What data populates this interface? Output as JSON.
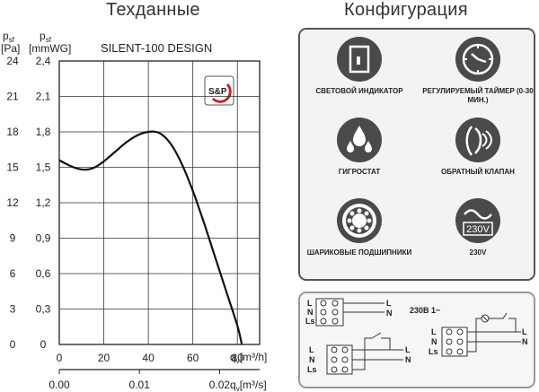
{
  "headings": {
    "tech": "Техданные",
    "config": "Конфигурация"
  },
  "chart_data": {
    "type": "line",
    "title": "SILENT-100 DESIGN",
    "y_left_label": [
      "p",
      "sf",
      "[Pa]"
    ],
    "y_right_label": [
      "p",
      "sf",
      "[mmWG]"
    ],
    "x_top_label": [
      "q",
      "v",
      "[m³/h]"
    ],
    "x_bottom_label": [
      "q",
      "v",
      "[m³/s]"
    ],
    "y_pa_ticks": [
      "24",
      "21",
      "18",
      "15",
      "12",
      "9",
      "6",
      "3",
      "0"
    ],
    "y_mmwg_ticks": [
      "2,4",
      "2,1",
      "1,8",
      "1,5",
      "1,2",
      "0,9",
      "0,6",
      "0,3",
      "0"
    ],
    "x_m3h_ticks": [
      "0",
      "20",
      "40",
      "60",
      "80"
    ],
    "x_m3s_ticks": [
      "0.00",
      "0.01",
      "0.02"
    ],
    "xlim": [
      0,
      90
    ],
    "ylim": [
      0,
      2.4
    ],
    "grid": true,
    "series": [
      {
        "x": [
          0,
          4,
          8,
          12,
          16,
          20,
          25,
          30,
          35,
          40,
          45,
          50,
          55,
          60,
          65,
          70,
          75,
          80,
          82
        ],
        "y": [
          1.56,
          1.52,
          1.49,
          1.48,
          1.5,
          1.55,
          1.63,
          1.71,
          1.77,
          1.8,
          1.79,
          1.7,
          1.53,
          1.3,
          1.03,
          0.74,
          0.45,
          0.16,
          0.0
        ]
      }
    ]
  },
  "features": [
    {
      "label": "СВЕТОВОЙ ИНДИКАТОР",
      "icon": "light-indicator-icon"
    },
    {
      "label": "РЕГУЛИРУЕМЫЙ ТАЙМЕР (0-30 МИН.)",
      "icon": "timer-icon"
    },
    {
      "label": "ГИГРОСТАТ",
      "icon": "hygrostat-icon"
    },
    {
      "label": "ОБРАТНЫЙ КЛАПАН",
      "icon": "check-valve-icon"
    },
    {
      "label": "ШАРИКОВЫЕ ПОДШИПНИКИ",
      "icon": "ball-bearing-icon"
    },
    {
      "label": "230V",
      "icon": "voltage-230v-icon",
      "icon_text": "230V"
    }
  ],
  "wiring": {
    "supply_label": "230В 1~",
    "terminal_L": "L",
    "terminal_N": "N",
    "terminal_Ls": "Ls"
  },
  "colors": {
    "line": "#111111",
    "grid": "#333333",
    "icon_fill": "#4a4a4a",
    "logo_red": "#c0272d"
  }
}
